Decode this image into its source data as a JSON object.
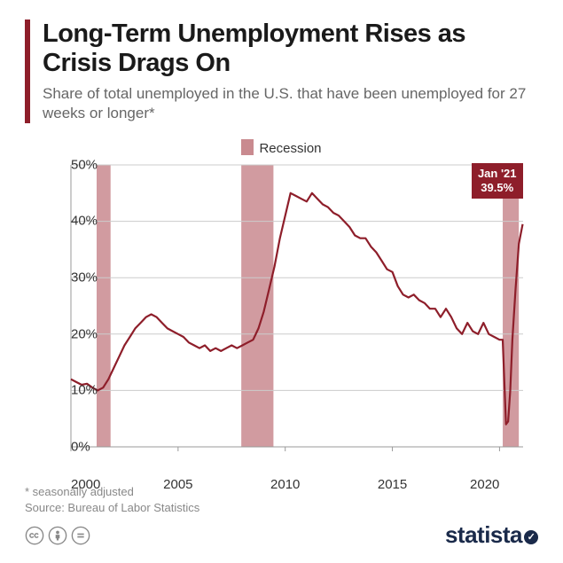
{
  "title": "Long-Term Unemployment Rises as Crisis Drags On",
  "subtitle": "Share of total unemployed in the U.S. that have been unemployed for 27 weeks or longer*",
  "legend": {
    "label": "Recession",
    "swatch_color": "#c98a8f"
  },
  "callout": {
    "line1": "Jan '21",
    "line2": "39.5%",
    "bg": "#8e1e2a"
  },
  "footnote1": "* seasonally adjusted",
  "footnote2": "Source: Bureau of Labor Statistics",
  "logo": "statista",
  "chart": {
    "type": "line",
    "background_color": "#ffffff",
    "grid_color": "#cccccc",
    "axis_color": "#999999",
    "line_color": "#8e1e2a",
    "line_width": 2.2,
    "xlim": [
      2000,
      2021.1
    ],
    "ylim": [
      0,
      50
    ],
    "yticks": [
      0,
      10,
      20,
      30,
      40,
      50
    ],
    "ytick_labels": [
      "0%",
      "10%",
      "20%",
      "30%",
      "40%",
      "50%"
    ],
    "xticks": [
      2000,
      2005,
      2010,
      2015,
      2020
    ],
    "xtick_labels": [
      "2000",
      "2005",
      "2010",
      "2015",
      "2020"
    ],
    "recessions": [
      {
        "start": 2001.2,
        "end": 2001.85
      },
      {
        "start": 2007.95,
        "end": 2009.45
      },
      {
        "start": 2020.15,
        "end": 2020.9
      }
    ],
    "recession_color": "#c98a8f",
    "series": [
      [
        2000.0,
        12.0
      ],
      [
        2000.25,
        11.5
      ],
      [
        2000.5,
        11.0
      ],
      [
        2000.75,
        11.2
      ],
      [
        2001.0,
        10.5
      ],
      [
        2001.25,
        10.0
      ],
      [
        2001.5,
        10.5
      ],
      [
        2001.75,
        12.0
      ],
      [
        2002.0,
        14.0
      ],
      [
        2002.25,
        16.0
      ],
      [
        2002.5,
        18.0
      ],
      [
        2002.75,
        19.5
      ],
      [
        2003.0,
        21.0
      ],
      [
        2003.25,
        22.0
      ],
      [
        2003.5,
        23.0
      ],
      [
        2003.75,
        23.5
      ],
      [
        2004.0,
        23.0
      ],
      [
        2004.25,
        22.0
      ],
      [
        2004.5,
        21.0
      ],
      [
        2004.75,
        20.5
      ],
      [
        2005.0,
        20.0
      ],
      [
        2005.25,
        19.5
      ],
      [
        2005.5,
        18.5
      ],
      [
        2005.75,
        18.0
      ],
      [
        2006.0,
        17.5
      ],
      [
        2006.25,
        18.0
      ],
      [
        2006.5,
        17.0
      ],
      [
        2006.75,
        17.5
      ],
      [
        2007.0,
        17.0
      ],
      [
        2007.25,
        17.5
      ],
      [
        2007.5,
        18.0
      ],
      [
        2007.75,
        17.5
      ],
      [
        2008.0,
        18.0
      ],
      [
        2008.25,
        18.5
      ],
      [
        2008.5,
        19.0
      ],
      [
        2008.75,
        21.0
      ],
      [
        2009.0,
        24.0
      ],
      [
        2009.25,
        28.0
      ],
      [
        2009.5,
        32.0
      ],
      [
        2009.75,
        37.0
      ],
      [
        2010.0,
        41.0
      ],
      [
        2010.25,
        45.0
      ],
      [
        2010.5,
        44.5
      ],
      [
        2010.75,
        44.0
      ],
      [
        2011.0,
        43.5
      ],
      [
        2011.25,
        45.0
      ],
      [
        2011.5,
        44.0
      ],
      [
        2011.75,
        43.0
      ],
      [
        2012.0,
        42.5
      ],
      [
        2012.25,
        41.5
      ],
      [
        2012.5,
        41.0
      ],
      [
        2012.75,
        40.0
      ],
      [
        2013.0,
        39.0
      ],
      [
        2013.25,
        37.5
      ],
      [
        2013.5,
        37.0
      ],
      [
        2013.75,
        37.0
      ],
      [
        2014.0,
        35.5
      ],
      [
        2014.25,
        34.5
      ],
      [
        2014.5,
        33.0
      ],
      [
        2014.75,
        31.5
      ],
      [
        2015.0,
        31.0
      ],
      [
        2015.25,
        28.5
      ],
      [
        2015.5,
        27.0
      ],
      [
        2015.75,
        26.5
      ],
      [
        2016.0,
        27.0
      ],
      [
        2016.25,
        26.0
      ],
      [
        2016.5,
        25.5
      ],
      [
        2016.75,
        24.5
      ],
      [
        2017.0,
        24.5
      ],
      [
        2017.25,
        23.0
      ],
      [
        2017.5,
        24.5
      ],
      [
        2017.75,
        23.0
      ],
      [
        2018.0,
        21.0
      ],
      [
        2018.25,
        20.0
      ],
      [
        2018.5,
        22.0
      ],
      [
        2018.75,
        20.5
      ],
      [
        2019.0,
        20.0
      ],
      [
        2019.25,
        22.0
      ],
      [
        2019.5,
        20.0
      ],
      [
        2019.75,
        19.5
      ],
      [
        2020.0,
        19.0
      ],
      [
        2020.15,
        19.0
      ],
      [
        2020.3,
        4.0
      ],
      [
        2020.4,
        4.5
      ],
      [
        2020.5,
        10.0
      ],
      [
        2020.6,
        19.0
      ],
      [
        2020.75,
        28.0
      ],
      [
        2020.9,
        36.0
      ],
      [
        2021.08,
        39.5
      ]
    ]
  }
}
